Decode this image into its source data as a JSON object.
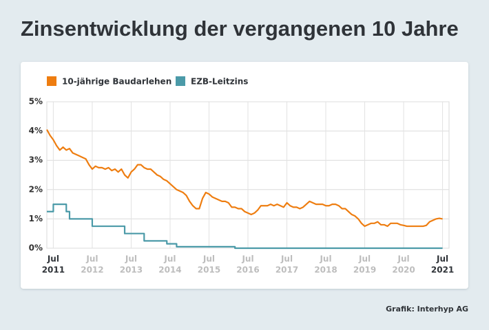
{
  "chart_data": {
    "type": "line",
    "title": "Zinsentwicklung der vergangenen 10 Jahre",
    "source": "Grafik: Interhyp AG",
    "x": [
      "2011-05",
      "2011-06",
      "2011-07",
      "2011-08",
      "2011-09",
      "2011-10",
      "2011-11",
      "2011-12",
      "2012-01",
      "2012-02",
      "2012-03",
      "2012-04",
      "2012-05",
      "2012-06",
      "2012-07",
      "2012-08",
      "2012-09",
      "2012-10",
      "2012-11",
      "2012-12",
      "2013-01",
      "2013-02",
      "2013-03",
      "2013-04",
      "2013-05",
      "2013-06",
      "2013-07",
      "2013-08",
      "2013-09",
      "2013-10",
      "2013-11",
      "2013-12",
      "2014-01",
      "2014-02",
      "2014-03",
      "2014-04",
      "2014-05",
      "2014-06",
      "2014-07",
      "2014-08",
      "2014-09",
      "2014-10",
      "2014-11",
      "2014-12",
      "2015-01",
      "2015-02",
      "2015-03",
      "2015-04",
      "2015-05",
      "2015-06",
      "2015-07",
      "2015-08",
      "2015-09",
      "2015-10",
      "2015-11",
      "2015-12",
      "2016-01",
      "2016-02",
      "2016-03",
      "2016-04",
      "2016-05",
      "2016-06",
      "2016-07",
      "2016-08",
      "2016-09",
      "2016-10",
      "2016-11",
      "2016-12",
      "2017-01",
      "2017-02",
      "2017-03",
      "2017-04",
      "2017-05",
      "2017-06",
      "2017-07",
      "2017-08",
      "2017-09",
      "2017-10",
      "2017-11",
      "2017-12",
      "2018-01",
      "2018-02",
      "2018-03",
      "2018-04",
      "2018-05",
      "2018-06",
      "2018-07",
      "2018-08",
      "2018-09",
      "2018-10",
      "2018-11",
      "2018-12",
      "2019-01",
      "2019-02",
      "2019-03",
      "2019-04",
      "2019-05",
      "2019-06",
      "2019-07",
      "2019-08",
      "2019-09",
      "2019-10",
      "2019-11",
      "2019-12",
      "2020-01",
      "2020-02",
      "2020-03",
      "2020-04",
      "2020-05",
      "2020-06",
      "2020-07",
      "2020-08",
      "2020-09",
      "2020-10",
      "2020-11",
      "2020-12",
      "2021-01",
      "2021-02",
      "2021-03",
      "2021-04",
      "2021-05",
      "2021-06",
      "2021-07"
    ],
    "series": [
      {
        "name": "10-jährige Baudarlehen",
        "color": "#ee7d10",
        "values": [
          4.05,
          3.85,
          3.7,
          3.5,
          3.35,
          3.45,
          3.35,
          3.4,
          3.25,
          3.2,
          3.15,
          3.1,
          3.05,
          2.85,
          2.7,
          2.8,
          2.75,
          2.75,
          2.7,
          2.75,
          2.65,
          2.7,
          2.6,
          2.7,
          2.5,
          2.4,
          2.6,
          2.7,
          2.85,
          2.85,
          2.75,
          2.7,
          2.7,
          2.6,
          2.5,
          2.45,
          2.35,
          2.3,
          2.2,
          2.1,
          2.0,
          1.95,
          1.9,
          1.8,
          1.6,
          1.45,
          1.35,
          1.35,
          1.7,
          1.9,
          1.85,
          1.75,
          1.7,
          1.65,
          1.6,
          1.6,
          1.55,
          1.4,
          1.4,
          1.35,
          1.35,
          1.25,
          1.2,
          1.15,
          1.2,
          1.3,
          1.45,
          1.45,
          1.45,
          1.5,
          1.45,
          1.5,
          1.45,
          1.4,
          1.55,
          1.45,
          1.4,
          1.4,
          1.35,
          1.4,
          1.5,
          1.6,
          1.55,
          1.5,
          1.5,
          1.5,
          1.45,
          1.45,
          1.5,
          1.5,
          1.45,
          1.35,
          1.35,
          1.25,
          1.15,
          1.1,
          1.0,
          0.85,
          0.75,
          0.8,
          0.85,
          0.85,
          0.9,
          0.8,
          0.8,
          0.75,
          0.85,
          0.85,
          0.85,
          0.8,
          0.78,
          0.75,
          0.75,
          0.75,
          0.75,
          0.75,
          0.75,
          0.78,
          0.9,
          0.95,
          1.0,
          1.02,
          1.0
        ]
      },
      {
        "name": "EZB-Leitzins",
        "color": "#4b9aa8",
        "step": true,
        "values": [
          1.25,
          1.25,
          1.5,
          1.5,
          1.5,
          1.5,
          1.25,
          1.0,
          1,
          1,
          1,
          1,
          1,
          1,
          0.75,
          0.75,
          0.75,
          0.75,
          0.75,
          0.75,
          0.75,
          0.75,
          0.75,
          0.75,
          0.5,
          0.5,
          0.5,
          0.5,
          0.5,
          0.5,
          0.25,
          0.25,
          0.25,
          0.25,
          0.25,
          0.25,
          0.25,
          0.15,
          0.15,
          0.15,
          0.05,
          0.05,
          0.05,
          0.05,
          0.05,
          0.05,
          0.05,
          0.05,
          0.05,
          0.05,
          0.05,
          0.05,
          0.05,
          0.05,
          0.05,
          0.05,
          0.05,
          0.05,
          0,
          0,
          0,
          0,
          0,
          0,
          0,
          0,
          0,
          0,
          0,
          0,
          0,
          0,
          0,
          0,
          0,
          0,
          0,
          0,
          0,
          0,
          0,
          0,
          0,
          0,
          0,
          0,
          0,
          0,
          0,
          0,
          0,
          0,
          0,
          0,
          0,
          0,
          0,
          0,
          0,
          0,
          0,
          0,
          0,
          0,
          0,
          0,
          0,
          0,
          0,
          0,
          0,
          0,
          0,
          0,
          0,
          0,
          0,
          0,
          0,
          0,
          0,
          0,
          0
        ]
      }
    ],
    "xlim": [
      "2011-05",
      "2021-09"
    ],
    "xticks": [
      {
        "value": "2011-07",
        "label": "Jul"
      },
      {
        "value": "2012-07",
        "label": "Jul"
      },
      {
        "value": "2013-07",
        "label": "Jul"
      },
      {
        "value": "2014-07",
        "label": "Jul"
      },
      {
        "value": "2015-07",
        "label": "Jul"
      },
      {
        "value": "2016-07",
        "label": "Jul"
      },
      {
        "value": "2017-07",
        "label": "Jul"
      },
      {
        "value": "2018-07",
        "label": "Jul"
      },
      {
        "value": "2019-07",
        "label": "Jul"
      },
      {
        "value": "2020-07",
        "label": "Jul"
      },
      {
        "value": "2021-07",
        "label": "Jul"
      }
    ],
    "xtick_years": [
      "2011",
      "2012",
      "2013",
      "2014",
      "2015",
      "2016",
      "2017",
      "2018",
      "2019",
      "2020",
      "2021"
    ],
    "ylim": [
      0,
      5
    ],
    "yticks": [
      {
        "value": 0,
        "label": "0%"
      },
      {
        "value": 1,
        "label": "1%"
      },
      {
        "value": 2,
        "label": "2%"
      },
      {
        "value": 3,
        "label": "3%"
      },
      {
        "value": 4,
        "label": "4%"
      },
      {
        "value": 5,
        "label": "5%"
      }
    ],
    "grid": true,
    "legend": "top-left"
  }
}
